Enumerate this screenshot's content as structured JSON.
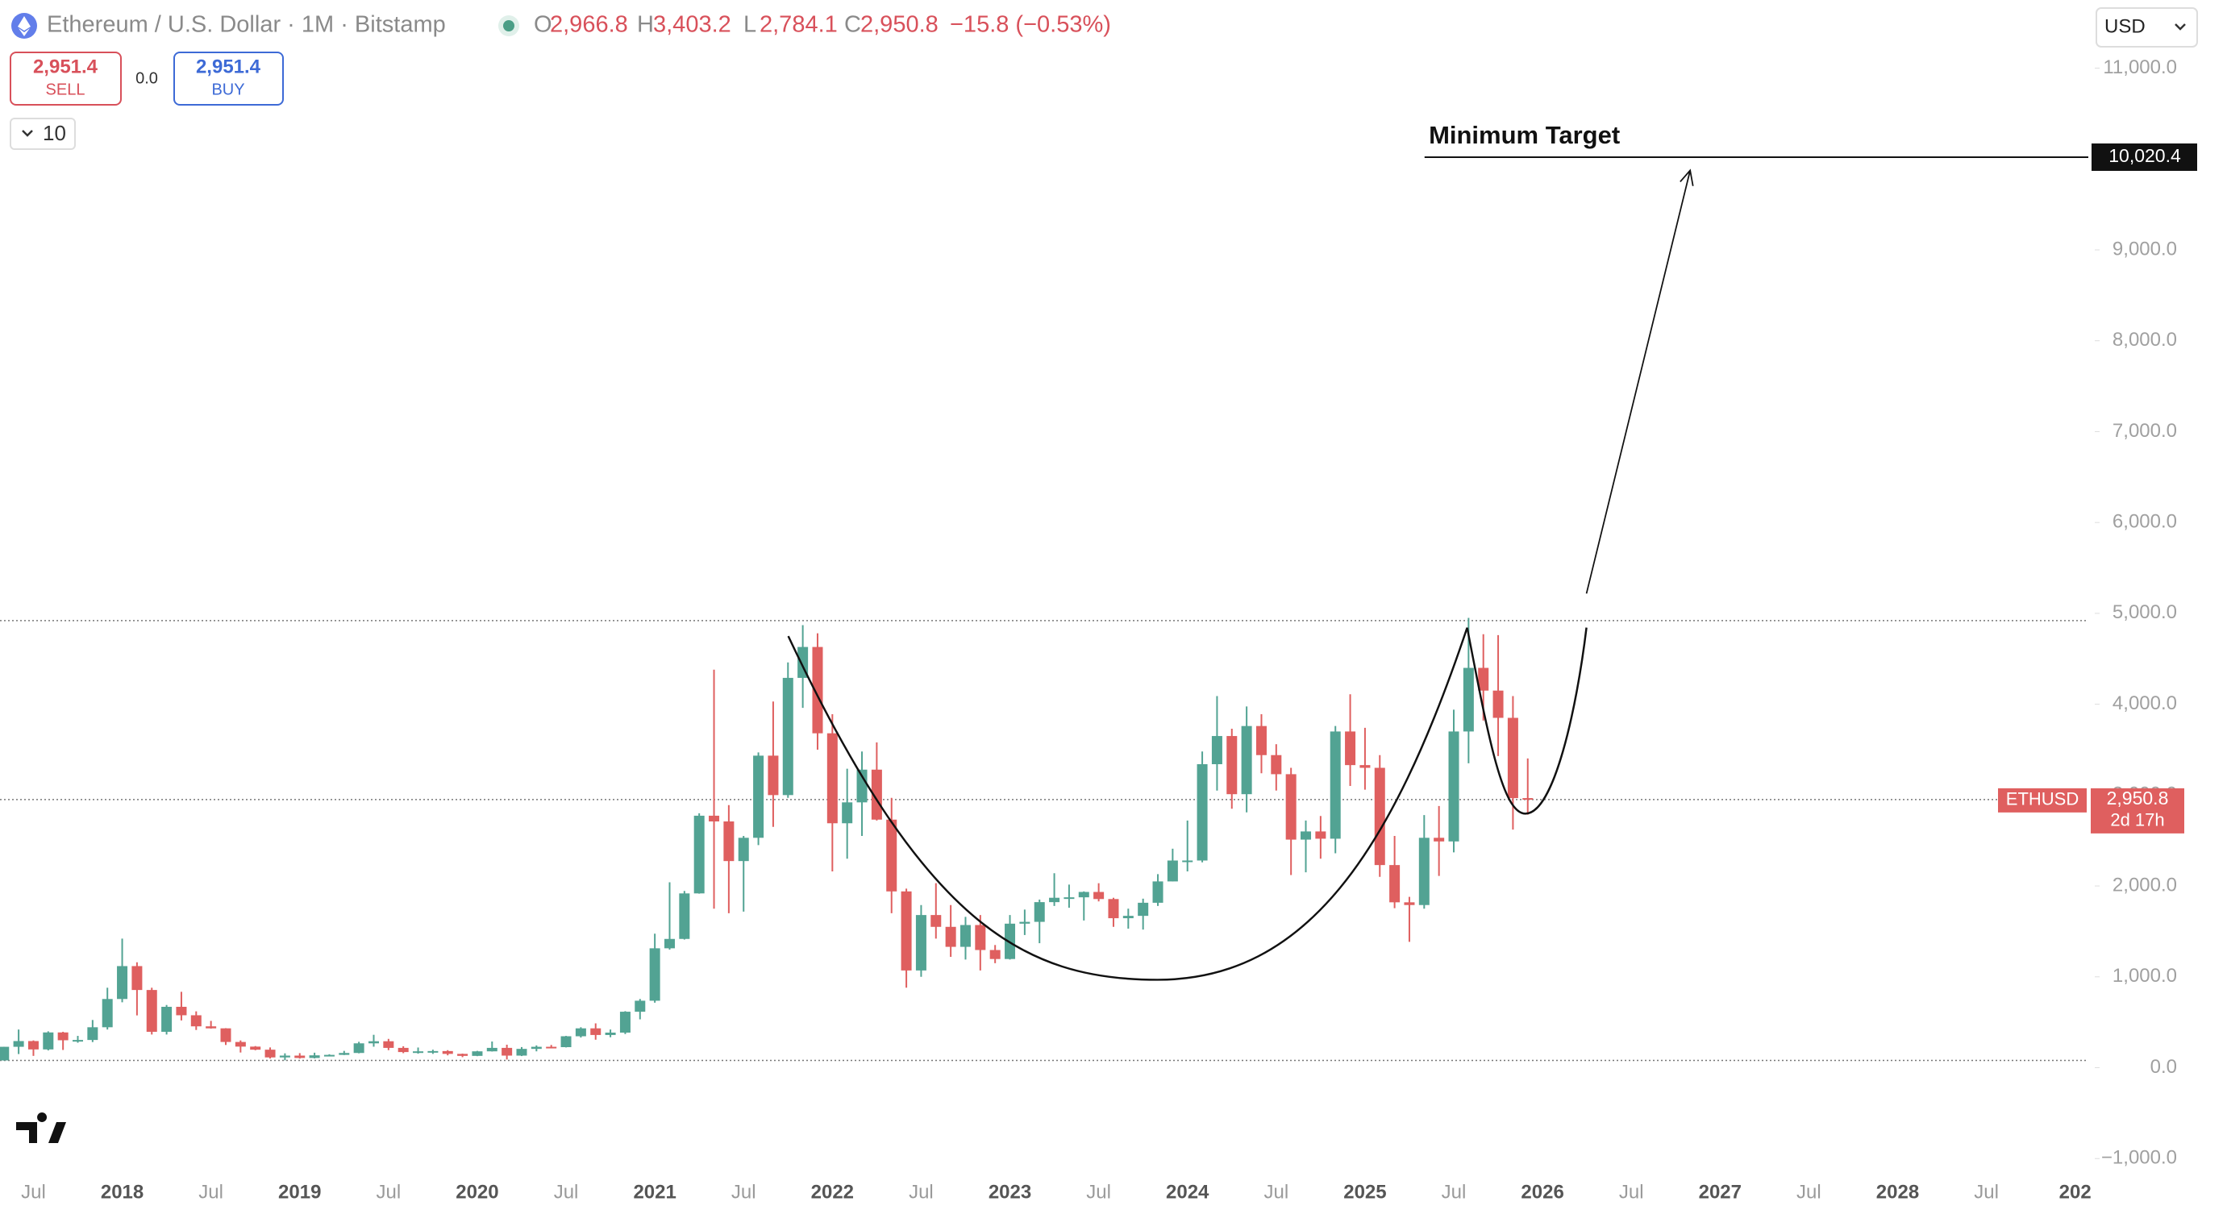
{
  "header": {
    "symbol": "Ethereum / U.S. Dollar · 1M · Bitstamp",
    "ohlc": [
      {
        "key": "O",
        "value": "2,966.8"
      },
      {
        "key": "H",
        "value": "3,403.2"
      },
      {
        "key": "L",
        "value": "2,784.1"
      },
      {
        "key": "C",
        "value": "2,950.8"
      }
    ],
    "change": "−15.8 (−0.53%)",
    "sell": {
      "price": "2,951.4",
      "label": "SELL"
    },
    "spread": "0.0",
    "buy": {
      "price": "2,951.4",
      "label": "BUY"
    },
    "interval_menu": "10",
    "currency": "USD"
  },
  "chart_data": {
    "type": "candlestick",
    "x": [
      "2017-05",
      "2017-06",
      "2017-07",
      "2017-08",
      "2017-09",
      "2017-10",
      "2017-11",
      "2017-12",
      "2018-01",
      "2018-02",
      "2018-03",
      "2018-04",
      "2018-05",
      "2018-06",
      "2018-07",
      "2018-08",
      "2018-09",
      "2018-10",
      "2018-11",
      "2018-12",
      "2019-01",
      "2019-02",
      "2019-03",
      "2019-04",
      "2019-05",
      "2019-06",
      "2019-07",
      "2019-08",
      "2019-09",
      "2019-10",
      "2019-11",
      "2019-12",
      "2020-01",
      "2020-02",
      "2020-03",
      "2020-04",
      "2020-05",
      "2020-06",
      "2020-07",
      "2020-08",
      "2020-09",
      "2020-10",
      "2020-11",
      "2020-12",
      "2021-01",
      "2021-02",
      "2021-03",
      "2021-04",
      "2021-05",
      "2021-06",
      "2021-07",
      "2021-08",
      "2021-09",
      "2021-10",
      "2021-11",
      "2021-12",
      "2022-01",
      "2022-02",
      "2022-03",
      "2022-04",
      "2022-05",
      "2022-06",
      "2022-07",
      "2022-08",
      "2022-09",
      "2022-10",
      "2022-11",
      "2022-12",
      "2023-01",
      "2023-02",
      "2023-03",
      "2023-04",
      "2023-05",
      "2023-06",
      "2023-07",
      "2023-08",
      "2023-09",
      "2023-10",
      "2023-11",
      "2023-12",
      "2024-01",
      "2024-02",
      "2024-03",
      "2024-04",
      "2024-05",
      "2024-06",
      "2024-07",
      "2024-08",
      "2024-09",
      "2024-10",
      "2024-11",
      "2024-12",
      "2025-01",
      "2025-02",
      "2025-03",
      "2025-04",
      "2025-05",
      "2025-06",
      "2025-07",
      "2025-08",
      "2025-09",
      "2025-10",
      "2025-11",
      "2025-12"
    ],
    "open": [
      80,
      230,
      293,
      201,
      388,
      302,
      305,
      445,
      756,
      1118,
      855,
      395,
      670,
      577,
      455,
      433,
      283,
      232,
      198,
      113,
      133,
      107,
      136,
      141,
      162,
      268,
      291,
      218,
      172,
      180,
      183,
      152,
      130,
      180,
      218,
      133,
      207,
      230,
      226,
      346,
      433,
      360,
      386,
      616,
      737,
      1314,
      1417,
      1918,
      2773,
      2710,
      2274,
      2530,
      3434,
      3000,
      4290,
      4630,
      3680,
      2690,
      2920,
      3280,
      2730,
      1940,
      1070,
      1680,
      1550,
      1330,
      1570,
      1295,
      1196,
      1585,
      1605,
      1822,
      1870,
      1875,
      1934,
      1856,
      1645,
      1671,
      1815,
      2050,
      2280,
      2280,
      3340,
      3650,
      3010,
      3760,
      3440,
      3230,
      2510,
      2600,
      2520,
      3700,
      3330,
      3300,
      2230,
      1820,
      1790,
      2530,
      2490,
      3700,
      4400,
      4150,
      3850,
      2966.8
    ],
    "high": [
      230,
      420,
      300,
      400,
      395,
      350,
      525,
      880,
      1420,
      1160,
      880,
      690,
      835,
      620,
      515,
      435,
      300,
      238,
      223,
      158,
      160,
      165,
      148,
      185,
      285,
      362,
      317,
      236,
      222,
      198,
      193,
      155,
      185,
      288,
      253,
      227,
      245,
      250,
      350,
      445,
      488,
      420,
      622,
      756,
      1475,
      2040,
      1945,
      2800,
      4380,
      2890,
      2550,
      3470,
      4030,
      4460,
      4870,
      4780,
      3890,
      3290,
      3480,
      3580,
      2970,
      1970,
      1790,
      2030,
      1790,
      1660,
      1680,
      1350,
      1680,
      1740,
      1850,
      2140,
      2015,
      1940,
      2030,
      1870,
      1750,
      1860,
      2130,
      2410,
      2720,
      3480,
      4090,
      3730,
      3975,
      3890,
      3560,
      3300,
      2720,
      2770,
      3760,
      4110,
      3740,
      3440,
      2550,
      1880,
      2780,
      2880,
      3940,
      4950,
      4770,
      4760,
      4090,
      3403.2
    ],
    "low": [
      78,
      150,
      130,
      190,
      195,
      275,
      282,
      420,
      720,
      575,
      365,
      365,
      520,
      415,
      430,
      250,
      167,
      192,
      101,
      81,
      100,
      102,
      128,
      139,
      158,
      231,
      193,
      160,
      155,
      152,
      136,
      116,
      127,
      178,
      90,
      128,
      180,
      216,
      223,
      332,
      308,
      335,
      370,
      532,
      715,
      1300,
      1410,
      1915,
      1750,
      1700,
      1718,
      2450,
      2650,
      2970,
      3960,
      3500,
      2160,
      2300,
      2550,
      2720,
      1700,
      880,
      1000,
      1420,
      1220,
      1190,
      1070,
      1150,
      1190,
      1460,
      1370,
      1780,
      1760,
      1620,
      1830,
      1550,
      1530,
      1520,
      1780,
      2050,
      2160,
      2260,
      3050,
      2850,
      2810,
      3240,
      3050,
      2120,
      2150,
      2300,
      2360,
      3100,
      3060,
      2100,
      1755,
      1385,
      1750,
      2110,
      2370,
      3350,
      3820,
      3430,
      2620,
      2784.1
    ],
    "close": [
      230,
      293,
      201,
      388,
      302,
      305,
      445,
      756,
      1118,
      855,
      395,
      670,
      577,
      455,
      433,
      283,
      232,
      198,
      113,
      133,
      107,
      136,
      141,
      162,
      268,
      291,
      218,
      172,
      180,
      183,
      152,
      130,
      180,
      218,
      133,
      207,
      230,
      226,
      346,
      433,
      360,
      386,
      616,
      737,
      1314,
      1417,
      1918,
      2773,
      2710,
      2274,
      2530,
      3434,
      3000,
      4290,
      4630,
      3680,
      2690,
      2920,
      3280,
      2730,
      1940,
      1070,
      1680,
      1550,
      1330,
      1570,
      1295,
      1196,
      1585,
      1605,
      1822,
      1870,
      1875,
      1934,
      1856,
      1645,
      1671,
      1815,
      2050,
      2280,
      2280,
      3340,
      3650,
      3010,
      3760,
      3440,
      3230,
      2510,
      2600,
      2520,
      3700,
      3330,
      3300,
      2230,
      1820,
      1790,
      2530,
      2490,
      3700,
      4400,
      4150,
      3850,
      2966.8,
      2950.8
    ],
    "up_color": "#52a393",
    "down_color": "#df5f5f",
    "ylim": [
      -1140,
      11750
    ],
    "yticks": [
      {
        "value": -1000,
        "label": "−1,000.0"
      },
      {
        "value": 0,
        "label": "0.0"
      },
      {
        "value": 1000,
        "label": "1,000.0"
      },
      {
        "value": 2000,
        "label": "2,000.0"
      },
      {
        "value": 3000,
        "label": "3,000.0"
      },
      {
        "value": 4000,
        "label": "4,000.0"
      },
      {
        "value": 5000,
        "label": "5,000.0"
      },
      {
        "value": 6000,
        "label": "6,000.0"
      },
      {
        "value": 7000,
        "label": "7,000.0"
      },
      {
        "value": 8000,
        "label": "8,000.0"
      },
      {
        "value": 9000,
        "label": "9,000.0"
      },
      {
        "value": 10000,
        "label": "10,000.0"
      },
      {
        "value": 11000,
        "label": "11,000.0"
      }
    ],
    "xaxis_labels": [
      "Jul",
      "2018",
      "Jul",
      "2019",
      "Jul",
      "2020",
      "Jul",
      "2021",
      "Jul",
      "2022",
      "Jul",
      "2023",
      "Jul",
      "2024",
      "Jul",
      "2025",
      "Jul",
      "2026",
      "Jul",
      "2027",
      "Jul",
      "2028",
      "Jul",
      "202"
    ],
    "levels": [
      4920,
      80
    ],
    "target": {
      "label": "Minimum Target",
      "value": 10020.4,
      "value_label": "10,020.4"
    },
    "last_price": {
      "symbol": "ETHUSD",
      "value": 2950.8,
      "value_label": "2,950.8",
      "countdown": "2d 17h"
    }
  }
}
